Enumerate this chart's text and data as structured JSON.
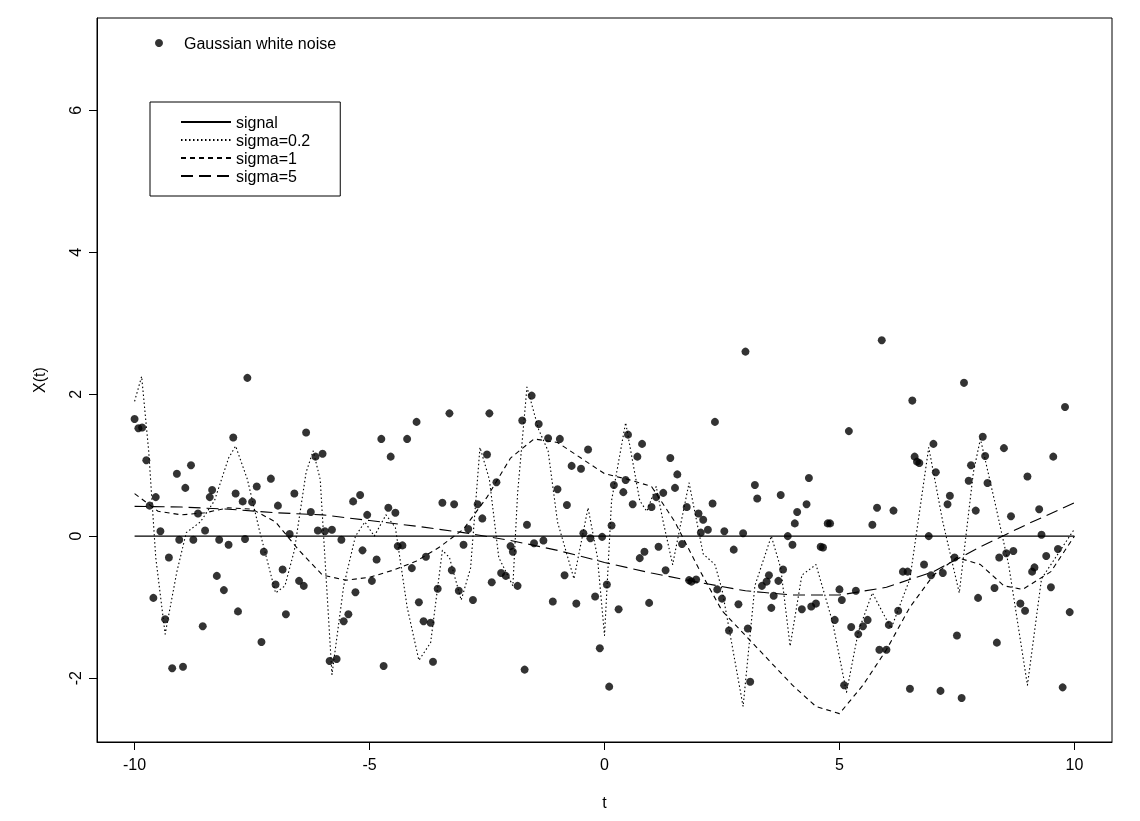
{
  "chart_data": {
    "type": "line",
    "xlabel": "t",
    "ylabel": "X(t)",
    "xlim": [
      -10.8,
      10.8
    ],
    "xticks": [
      -10,
      -5,
      0,
      5,
      10
    ],
    "ylim": [
      -2.9,
      7.3
    ],
    "yticks": [
      -2,
      0,
      2,
      4,
      6
    ],
    "grid": false,
    "legend": "top left",
    "series": [
      {
        "name": "Gaussian white noise",
        "type": "scatter",
        "marker": "circle",
        "color": "#000000",
        "x": [
          -10,
          -9.92,
          -9.84,
          -9.75,
          -9.68,
          -9.6,
          -9.55,
          -9.45,
          -9.35,
          -9.27,
          -9.2,
          -9.1,
          -9.05,
          -8.97,
          -8.92,
          -8.8,
          -8.75,
          -8.65,
          -8.55,
          -8.5,
          -8.4,
          -8.35,
          -8.25,
          -8.2,
          -8.1,
          -8,
          -7.9,
          -7.85,
          -7.8,
          -7.7,
          -7.65,
          -7.6,
          -7.5,
          -7.4,
          -7.3,
          -7.25,
          -7.1,
          -7,
          -6.95,
          -6.85,
          -6.78,
          -6.7,
          -6.6,
          -6.5,
          -6.4,
          -6.35,
          -6.25,
          -6.15,
          -6.1,
          -6,
          -5.95,
          -5.85,
          -5.8,
          -5.7,
          -5.6,
          -5.55,
          -5.45,
          -5.35,
          -5.3,
          -5.2,
          -5.15,
          -5.05,
          -4.95,
          -4.85,
          -4.75,
          -4.7,
          -4.6,
          -4.55,
          -4.45,
          -4.4,
          -4.3,
          -4.2,
          -4.1,
          -4,
          -3.95,
          -3.85,
          -3.8,
          -3.7,
          -3.65,
          -3.55,
          -3.45,
          -3.3,
          -3.25,
          -3.2,
          -3.1,
          -3,
          -2.9,
          -2.8,
          -2.7,
          -2.6,
          -2.5,
          -2.45,
          -2.4,
          -2.3,
          -2.2,
          -2.1,
          -2,
          -1.95,
          -1.85,
          -1.75,
          -1.7,
          -1.65,
          -1.55,
          -1.5,
          -1.4,
          -1.3,
          -1.2,
          -1.1,
          -1,
          -0.95,
          -0.85,
          -0.8,
          -0.7,
          -0.6,
          -0.5,
          -0.45,
          -0.35,
          -0.3,
          -0.2,
          -0.1,
          -0.05,
          0.05,
          0.1,
          0.15,
          0.2,
          0.3,
          0.4,
          0.45,
          0.5,
          0.6,
          0.7,
          0.75,
          0.8,
          0.85,
          0.95,
          1,
          1.1,
          1.15,
          1.25,
          1.3,
          1.4,
          1.5,
          1.55,
          1.65,
          1.75,
          1.8,
          1.85,
          1.95,
          2,
          2.05,
          2.1,
          2.2,
          2.3,
          2.35,
          2.4,
          2.5,
          2.55,
          2.65,
          2.75,
          2.85,
          2.95,
          3,
          3.05,
          3.1,
          3.2,
          3.25,
          3.35,
          3.45,
          3.5,
          3.55,
          3.6,
          3.7,
          3.75,
          3.8,
          3.9,
          4,
          4.05,
          4.1,
          4.2,
          4.3,
          4.35,
          4.4,
          4.5,
          4.6,
          4.65,
          4.75,
          4.8,
          4.9,
          5,
          5.05,
          5.1,
          5.2,
          5.25,
          5.35,
          5.4,
          5.5,
          5.6,
          5.7,
          5.8,
          5.85,
          5.9,
          6,
          6.05,
          6.15,
          6.25,
          6.35,
          6.45,
          6.5,
          6.55,
          6.6,
          6.65,
          6.7,
          6.8,
          6.9,
          6.95,
          7,
          7.05,
          7.15,
          7.2,
          7.3,
          7.35,
          7.45,
          7.5,
          7.6,
          7.65,
          7.75,
          7.8,
          7.9,
          7.95,
          8.05,
          8.1,
          8.15,
          8.3,
          8.35,
          8.4,
          8.5,
          8.55,
          8.65,
          8.7,
          8.85,
          8.95,
          9,
          9.1,
          9.15,
          9.25,
          9.3,
          9.4,
          9.5,
          9.55,
          9.65,
          9.75,
          9.8,
          9.9
        ],
        "values": [
          1.65,
          1.52,
          1.53,
          1.07,
          0.43,
          -0.87,
          0.55,
          0.07,
          -1.17,
          -0.3,
          -1.86,
          0.88,
          -0.05,
          -1.84,
          0.68,
          1.0,
          -0.05,
          0.32,
          -1.27,
          0.08,
          0.55,
          0.65,
          -0.56,
          -0.05,
          -0.76,
          -0.12,
          1.39,
          0.6,
          -1.06,
          0.49,
          -0.04,
          2.23,
          0.48,
          0.7,
          -1.49,
          -0.22,
          0.81,
          -0.68,
          0.43,
          -0.47,
          -1.1,
          0.03,
          0.6,
          -0.63,
          -0.7,
          1.46,
          0.34,
          1.12,
          0.08,
          1.16,
          0.07,
          -1.76,
          0.09,
          -1.73,
          -0.05,
          -1.2,
          -1.1,
          0.49,
          -0.79,
          0.58,
          -0.2,
          0.3,
          -0.63,
          -0.33,
          1.37,
          -1.83,
          0.4,
          1.12,
          0.33,
          -0.14,
          -0.13,
          1.37,
          -0.45,
          1.61,
          -0.93,
          -1.2,
          -0.29,
          -1.22,
          -1.77,
          -0.74,
          0.47,
          1.73,
          -0.48,
          0.45,
          -0.77,
          -0.12,
          0.1,
          -0.9,
          0.45,
          0.25,
          1.15,
          1.73,
          -0.65,
          0.76,
          -0.52,
          -0.56,
          -0.14,
          -0.22,
          -0.7,
          1.63,
          -1.88,
          0.16,
          1.98,
          -0.1,
          1.58,
          -0.06,
          1.38,
          -0.92,
          0.66,
          1.37,
          -0.55,
          0.44,
          0.99,
          -0.95,
          0.95,
          0.04,
          1.22,
          -0.03,
          -0.85,
          -1.58,
          -0.01,
          -0.68,
          -2.12,
          0.15,
          0.72,
          -1.03,
          0.62,
          0.79,
          1.43,
          0.45,
          1.12,
          -0.31,
          1.3,
          -0.22,
          -0.94,
          0.41,
          0.55,
          -0.15,
          0.61,
          -0.48,
          1.1,
          0.68,
          0.87,
          -0.11,
          0.41,
          -0.62,
          -0.64,
          -0.61,
          0.32,
          0.05,
          0.23,
          0.09,
          0.46,
          1.61,
          -0.75,
          -0.88,
          0.07,
          -1.33,
          -0.19,
          -0.96,
          0.04,
          2.6,
          -1.3,
          -2.05,
          0.72,
          0.53,
          -0.7,
          -0.64,
          -0.55,
          -1.01,
          -0.84,
          -0.63,
          0.58,
          -0.47,
          0.0,
          -0.12,
          0.18,
          0.34,
          -1.03,
          0.45,
          0.82,
          -0.99,
          -0.95,
          -0.15,
          -0.16,
          0.18,
          0.18,
          -1.18,
          -0.75,
          -0.9,
          -2.1,
          1.48,
          -1.28,
          -0.77,
          -1.38,
          -1.27,
          -1.18,
          0.16,
          0.4,
          -1.6,
          2.76,
          -1.6,
          -1.25,
          0.36,
          -1.05,
          -0.5,
          -0.5,
          -2.15,
          1.91,
          1.12,
          1.05,
          1.03,
          -0.4,
          0.0,
          -0.55,
          1.3,
          0.9,
          -2.18,
          -0.52,
          0.45,
          0.57,
          -0.3,
          -1.4,
          -2.28,
          2.16,
          0.78,
          1.0,
          0.36,
          -0.87,
          1.4,
          1.13,
          0.75,
          -0.73,
          -1.5,
          -0.3,
          1.24,
          -0.24,
          0.28,
          -0.21,
          -0.95,
          -1.05,
          0.84,
          -0.5,
          -0.44,
          0.38,
          0.02,
          -0.28,
          -0.72,
          1.12,
          -0.18,
          -2.13,
          1.82,
          -1.07
        ]
      },
      {
        "name": "signal",
        "marker": "none",
        "line_style": "solid",
        "color": "#000000",
        "x": [
          -10,
          10
        ],
        "values": [
          0,
          0
        ]
      },
      {
        "name": "sigma=0.2",
        "marker": "none",
        "line_style": "dotted",
        "color": "#000000",
        "x": [
          -10,
          -9.85,
          -9.7,
          -9.55,
          -9.35,
          -9.1,
          -8.9,
          -8.6,
          -8.3,
          -8,
          -7.85,
          -7.6,
          -7.35,
          -7,
          -6.8,
          -6.6,
          -6.35,
          -6.2,
          -6.05,
          -5.8,
          -5.55,
          -5.3,
          -5.1,
          -4.9,
          -4.65,
          -4.45,
          -4.2,
          -3.95,
          -3.7,
          -3.45,
          -3.3,
          -3.05,
          -2.85,
          -2.65,
          -2.45,
          -2.25,
          -1.95,
          -1.85,
          -1.65,
          -1.4,
          -1.2,
          -1,
          -0.65,
          -0.35,
          -0.15,
          0,
          0.15,
          0.45,
          0.75,
          0.9,
          1.1,
          1.25,
          1.45,
          1.6,
          1.8,
          2.1,
          2.35,
          2.5,
          2.95,
          3.2,
          3.55,
          3.75,
          3.95,
          4.2,
          4.5,
          4.85,
          5.15,
          5.4,
          5.7,
          6.1,
          6.5,
          6.9,
          7.2,
          7.55,
          7.85,
          8,
          8.3,
          8.6,
          9,
          9.3,
          9.6,
          9.9,
          10
        ],
        "values": [
          1.9,
          2.25,
          1.2,
          -0.3,
          -1.38,
          -0.5,
          0.05,
          0.2,
          0.5,
          1.1,
          1.27,
          0.8,
          0.1,
          -0.8,
          -0.7,
          -0.2,
          0.9,
          1.2,
          0.8,
          -1.95,
          -0.7,
          0.0,
          0.2,
          0.0,
          0.3,
          0.12,
          -1.0,
          -1.75,
          -1.5,
          -0.2,
          -0.3,
          -0.9,
          -0.45,
          1.25,
          0.8,
          -0.3,
          -0.7,
          0.6,
          2.1,
          1.5,
          1.2,
          0.2,
          -0.6,
          0.4,
          -0.3,
          -1.4,
          0.5,
          1.6,
          0.5,
          0.35,
          0.7,
          0.2,
          -0.4,
          0.1,
          0.75,
          -0.25,
          -0.4,
          -0.75,
          -2.4,
          -0.7,
          0.0,
          -0.45,
          -1.55,
          -0.55,
          -0.4,
          -1.2,
          -2.2,
          -1.35,
          -0.8,
          -1.3,
          -0.6,
          1.25,
          0.2,
          -0.8,
          0.9,
          1.37,
          0.5,
          -0.4,
          -2.1,
          -0.6,
          -0.3,
          0.0,
          0.1
        ]
      },
      {
        "name": "sigma=1",
        "marker": "none",
        "line_style": "dashed",
        "color": "#000000",
        "x": [
          -10,
          -9.5,
          -9,
          -8.5,
          -8,
          -7.5,
          -7,
          -6.5,
          -6,
          -5.5,
          -5,
          -4.5,
          -4,
          -3.5,
          -3,
          -2.5,
          -2,
          -1.5,
          -1,
          -0.5,
          0,
          0.5,
          1,
          1.5,
          2,
          2.5,
          3,
          3.5,
          4,
          4.5,
          5,
          5.5,
          6,
          6.5,
          7,
          7.5,
          8,
          8.5,
          8.9,
          9.5,
          10
        ],
        "values": [
          0.6,
          0.35,
          0.3,
          0.33,
          0.4,
          0.38,
          0.2,
          -0.2,
          -0.55,
          -0.62,
          -0.58,
          -0.48,
          -0.35,
          -0.15,
          0.1,
          0.55,
          1.1,
          1.37,
          1.32,
          1.1,
          0.88,
          0.8,
          0.7,
          0.2,
          -0.45,
          -1.05,
          -1.4,
          -1.75,
          -2.1,
          -2.4,
          -2.5,
          -2.1,
          -1.6,
          -1.0,
          -0.55,
          -0.3,
          -0.4,
          -0.7,
          -0.75,
          -0.5,
          0.0
        ]
      },
      {
        "name": "sigma=5",
        "marker": "none",
        "line_style": "longdash",
        "color": "#000000",
        "x": [
          -10,
          -9,
          -8,
          -7,
          -6,
          -5,
          -4,
          -3,
          -2,
          -1,
          0,
          1,
          2,
          3,
          4,
          5,
          6,
          7,
          8,
          9,
          10
        ],
        "values": [
          0.42,
          0.41,
          0.38,
          0.33,
          0.3,
          0.22,
          0.14,
          0.05,
          -0.06,
          -0.2,
          -0.37,
          -0.52,
          -0.65,
          -0.77,
          -0.83,
          -0.83,
          -0.72,
          -0.5,
          -0.15,
          0.17,
          0.47
        ]
      }
    ]
  }
}
